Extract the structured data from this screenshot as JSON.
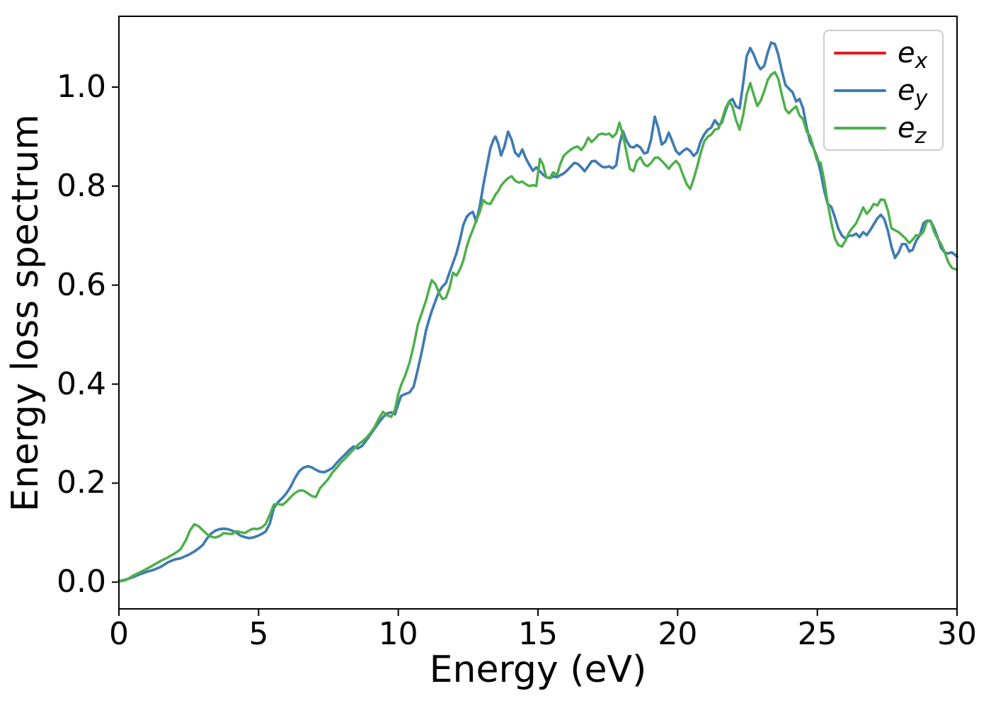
{
  "figure": {
    "xlabel": "Energy (eV)",
    "ylabel": "Energy loss spectrum",
    "background": "#ffffff",
    "spine_color": "#000000"
  },
  "legend": {
    "position": "upper right",
    "items": [
      {
        "label_main": "e",
        "label_sub": "x",
        "color": "#e41a1c"
      },
      {
        "label_main": "e",
        "label_sub": "y",
        "color": "#377eb8"
      },
      {
        "label_main": "e",
        "label_sub": "z",
        "color": "#4daf4a"
      }
    ]
  },
  "axes": {
    "x_ticks": [
      {
        "value": 0,
        "label": "0"
      },
      {
        "value": 5,
        "label": "5"
      },
      {
        "value": 10,
        "label": "10"
      },
      {
        "value": 15,
        "label": "15"
      },
      {
        "value": 20,
        "label": "20"
      },
      {
        "value": 25,
        "label": "25"
      },
      {
        "value": 30,
        "label": "30"
      }
    ],
    "y_ticks": [
      {
        "value": 0.0,
        "label": "0.0"
      },
      {
        "value": 0.2,
        "label": "0.2"
      },
      {
        "value": 0.4,
        "label": "0.4"
      },
      {
        "value": 0.6,
        "label": "0.6"
      },
      {
        "value": 0.8,
        "label": "0.8"
      },
      {
        "value": 1.0,
        "label": "1.0"
      }
    ]
  },
  "chart_data": {
    "type": "line",
    "title": "",
    "xlabel": "Energy (eV)",
    "ylabel": "Energy loss spectrum",
    "xlim": [
      0,
      30
    ],
    "ylim": [
      -0.054,
      1.143
    ],
    "grid": false,
    "legend_position": "upper right",
    "x": [
      0,
      0.25,
      0.5,
      0.75,
      1,
      1.25,
      1.5,
      1.75,
      2,
      2.2,
      2.4,
      2.55,
      2.7,
      2.85,
      3,
      3.15,
      3.3,
      3.45,
      3.6,
      3.75,
      3.9,
      4.05,
      4.2,
      4.35,
      4.5,
      4.65,
      4.8,
      4.95,
      5.1,
      5.25,
      5.4,
      5.55,
      5.7,
      5.85,
      6,
      6.15,
      6.3,
      6.45,
      6.6,
      6.75,
      6.9,
      7.05,
      7.2,
      7.35,
      7.5,
      7.65,
      7.8,
      7.95,
      8.1,
      8.25,
      8.4,
      8.55,
      8.7,
      8.85,
      9,
      9.15,
      9.3,
      9.45,
      9.6,
      9.75,
      9.88,
      10,
      10.1,
      10.25,
      10.4,
      10.55,
      10.7,
      10.85,
      11,
      11.1,
      11.2,
      11.33,
      11.45,
      11.58,
      11.7,
      11.83,
      11.96,
      12.08,
      12.21,
      12.33,
      12.45,
      12.55,
      12.67,
      12.79,
      12.92,
      13.04,
      13.17,
      13.3,
      13.42,
      13.48,
      13.58,
      13.68,
      13.8,
      13.93,
      14.06,
      14.18,
      14.31,
      14.44,
      14.56,
      14.69,
      14.82,
      14.94,
      15.07,
      15.17,
      15.3,
      15.43,
      15.55,
      15.68,
      15.8,
      15.93,
      16.05,
      16.18,
      16.3,
      16.42,
      16.55,
      16.67,
      16.8,
      16.92,
      17.05,
      17.17,
      17.3,
      17.42,
      17.55,
      17.67,
      17.8,
      17.92,
      18.04,
      18.16,
      18.29,
      18.42,
      18.54,
      18.67,
      18.8,
      18.92,
      19.05,
      19.18,
      19.3,
      19.43,
      19.56,
      19.68,
      19.81,
      19.94,
      20.06,
      20.19,
      20.32,
      20.45,
      20.57,
      20.7,
      20.82,
      20.95,
      21.08,
      21.2,
      21.33,
      21.46,
      21.58,
      21.71,
      21.84,
      21.96,
      22.09,
      22.22,
      22.35,
      22.47,
      22.6,
      22.72,
      22.85,
      22.97,
      23.1,
      23.23,
      23.35,
      23.48,
      23.6,
      23.73,
      23.86,
      23.98,
      24.11,
      24.24,
      24.36,
      24.49,
      24.62,
      24.74,
      24.87,
      24.99,
      25.12,
      25.25,
      25.37,
      25.5,
      25.63,
      25.75,
      25.88,
      26.01,
      26.13,
      26.26,
      26.39,
      26.51,
      26.64,
      26.77,
      26.89,
      27.02,
      27.15,
      27.27,
      27.4,
      27.53,
      27.65,
      27.78,
      27.91,
      28.03,
      28.16,
      28.29,
      28.41,
      28.54,
      28.67,
      28.8,
      28.92,
      29.05,
      29.18,
      29.3,
      29.43,
      29.56,
      29.68,
      29.81,
      29.94,
      30
    ],
    "series": [
      {
        "name": "e_x",
        "color": "#e41a1c",
        "values": "e_y"
      },
      {
        "name": "e_y",
        "color": "#377eb8",
        "values": [
          0.002,
          0.005,
          0.01,
          0.016,
          0.021,
          0.025,
          0.031,
          0.04,
          0.046,
          0.048,
          0.053,
          0.057,
          0.062,
          0.068,
          0.075,
          0.088,
          0.098,
          0.104,
          0.107,
          0.108,
          0.107,
          0.104,
          0.1,
          0.094,
          0.091,
          0.089,
          0.09,
          0.093,
          0.097,
          0.102,
          0.118,
          0.15,
          0.162,
          0.17,
          0.18,
          0.193,
          0.21,
          0.224,
          0.231,
          0.234,
          0.232,
          0.227,
          0.223,
          0.222,
          0.226,
          0.231,
          0.241,
          0.25,
          0.258,
          0.267,
          0.274,
          0.27,
          0.275,
          0.286,
          0.298,
          0.31,
          0.322,
          0.333,
          0.341,
          0.343,
          0.339,
          0.36,
          0.376,
          0.38,
          0.383,
          0.395,
          0.43,
          0.468,
          0.51,
          0.53,
          0.548,
          0.568,
          0.586,
          0.597,
          0.604,
          0.625,
          0.645,
          0.664,
          0.692,
          0.722,
          0.738,
          0.744,
          0.748,
          0.728,
          0.76,
          0.8,
          0.84,
          0.877,
          0.895,
          0.9,
          0.885,
          0.862,
          0.88,
          0.91,
          0.893,
          0.868,
          0.86,
          0.874,
          0.857,
          0.843,
          0.831,
          0.838,
          0.83,
          0.824,
          0.818,
          0.816,
          0.82,
          0.818,
          0.822,
          0.826,
          0.832,
          0.84,
          0.847,
          0.845,
          0.838,
          0.83,
          0.84,
          0.85,
          0.851,
          0.845,
          0.839,
          0.838,
          0.84,
          0.836,
          0.842,
          0.885,
          0.911,
          0.893,
          0.88,
          0.878,
          0.883,
          0.878,
          0.866,
          0.868,
          0.894,
          0.94,
          0.918,
          0.884,
          0.89,
          0.908,
          0.89,
          0.871,
          0.864,
          0.871,
          0.876,
          0.871,
          0.861,
          0.868,
          0.89,
          0.904,
          0.914,
          0.918,
          0.933,
          0.923,
          0.928,
          0.951,
          0.971,
          0.976,
          0.961,
          0.957,
          1.01,
          1.062,
          1.079,
          1.066,
          1.047,
          1.036,
          1.043,
          1.071,
          1.09,
          1.087,
          1.066,
          1.033,
          1.004,
          0.997,
          0.99,
          0.971,
          0.976,
          0.957,
          0.918,
          0.89,
          0.876,
          0.858,
          0.828,
          0.79,
          0.764,
          0.758,
          0.737,
          0.714,
          0.7,
          0.694,
          0.7,
          0.7,
          0.704,
          0.697,
          0.707,
          0.701,
          0.711,
          0.723,
          0.735,
          0.742,
          0.733,
          0.709,
          0.678,
          0.655,
          0.666,
          0.683,
          0.683,
          0.668,
          0.671,
          0.69,
          0.701,
          0.725,
          0.73,
          0.73,
          0.715,
          0.697,
          0.675,
          0.666,
          0.664,
          0.666,
          0.661,
          0.657
        ]
      },
      {
        "name": "e_z",
        "color": "#4daf4a",
        "values": [
          0.001,
          0.004,
          0.013,
          0.02,
          0.027,
          0.035,
          0.043,
          0.05,
          0.058,
          0.066,
          0.085,
          0.105,
          0.117,
          0.113,
          0.105,
          0.097,
          0.092,
          0.09,
          0.093,
          0.099,
          0.098,
          0.097,
          0.103,
          0.101,
          0.099,
          0.104,
          0.108,
          0.107,
          0.11,
          0.117,
          0.136,
          0.157,
          0.158,
          0.156,
          0.163,
          0.172,
          0.18,
          0.185,
          0.185,
          0.18,
          0.174,
          0.172,
          0.19,
          0.199,
          0.209,
          0.222,
          0.231,
          0.242,
          0.25,
          0.259,
          0.268,
          0.277,
          0.284,
          0.291,
          0.301,
          0.313,
          0.33,
          0.344,
          0.337,
          0.334,
          0.348,
          0.38,
          0.398,
          0.418,
          0.443,
          0.478,
          0.52,
          0.545,
          0.57,
          0.592,
          0.61,
          0.602,
          0.585,
          0.572,
          0.574,
          0.594,
          0.625,
          0.619,
          0.632,
          0.65,
          0.678,
          0.695,
          0.712,
          0.73,
          0.748,
          0.772,
          0.765,
          0.764,
          0.776,
          0.783,
          0.79,
          0.801,
          0.809,
          0.816,
          0.82,
          0.811,
          0.807,
          0.809,
          0.804,
          0.8,
          0.802,
          0.8,
          0.855,
          0.845,
          0.818,
          0.817,
          0.828,
          0.822,
          0.845,
          0.862,
          0.868,
          0.874,
          0.878,
          0.88,
          0.873,
          0.882,
          0.898,
          0.889,
          0.896,
          0.904,
          0.906,
          0.904,
          0.906,
          0.899,
          0.906,
          0.928,
          0.903,
          0.871,
          0.835,
          0.83,
          0.851,
          0.858,
          0.844,
          0.84,
          0.847,
          0.857,
          0.858,
          0.851,
          0.843,
          0.835,
          0.844,
          0.851,
          0.843,
          0.823,
          0.804,
          0.794,
          0.814,
          0.84,
          0.866,
          0.89,
          0.9,
          0.904,
          0.914,
          0.916,
          0.933,
          0.957,
          0.971,
          0.961,
          0.933,
          0.914,
          0.945,
          0.985,
          1.008,
          0.985,
          0.962,
          0.972,
          0.992,
          1.015,
          1.025,
          1.03,
          1.017,
          0.985,
          0.955,
          0.947,
          0.955,
          0.961,
          0.943,
          0.935,
          0.91,
          0.901,
          0.876,
          0.851,
          0.847,
          0.81,
          0.766,
          0.726,
          0.694,
          0.681,
          0.678,
          0.69,
          0.706,
          0.716,
          0.725,
          0.74,
          0.757,
          0.744,
          0.752,
          0.764,
          0.761,
          0.773,
          0.772,
          0.75,
          0.715,
          0.711,
          0.707,
          0.701,
          0.694,
          0.685,
          0.692,
          0.701,
          0.7,
          0.708,
          0.728,
          0.73,
          0.708,
          0.694,
          0.683,
          0.666,
          0.647,
          0.635,
          0.632,
          0.632
        ]
      }
    ]
  }
}
